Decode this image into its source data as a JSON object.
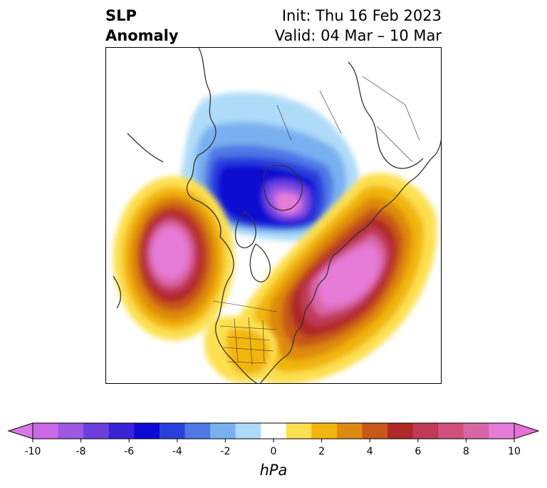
{
  "title": {
    "left_line1": "SLP",
    "left_line2": "Anomaly",
    "init": "Init: Thu 16 Feb 2023",
    "valid": "Valid: 04 Mar – 10 Mar"
  },
  "map": {
    "projection": "north-polar-stereographic",
    "features": [
      "coastlines",
      "country-borders",
      "us-state-borders"
    ]
  },
  "colorbar": {
    "unit": "hPa",
    "extend": "both",
    "tick_labels": [
      "-10",
      "-8",
      "-6",
      "-4",
      "-2",
      "0",
      "2",
      "4",
      "6",
      "8",
      "10"
    ],
    "bin_colors": [
      "#c869e6",
      "#9e58e6",
      "#6a3fdc",
      "#3b22d6",
      "#0a0ad2",
      "#2a40dc",
      "#4f78e6",
      "#79b0f0",
      "#aedcf8",
      "#ffffff",
      "#fde050",
      "#f2b50f",
      "#de8a10",
      "#c85818",
      "#b02828",
      "#c03a56",
      "#d0507a",
      "#d866a6",
      "#e67cd8"
    ],
    "min_color": "#d877e8",
    "max_color": "#e670da"
  }
}
